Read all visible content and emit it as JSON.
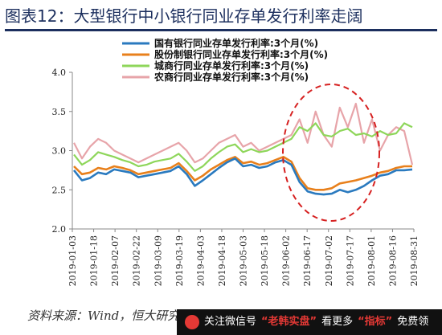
{
  "title": "图表12：大型银行中小银行同业存单发行利率走阔",
  "source": "资料来源：Wind，恒大研究院",
  "watermark": {
    "text1": "关注微信号",
    "text2": "“老韩实盘”",
    "text3": "看更多",
    "text4": "“指标”",
    "text5": "免费领"
  },
  "colors": {
    "title": "#1c2f5e",
    "series": [
      "#2a7abf",
      "#e8801c",
      "#8ed65a",
      "#e7a4a9"
    ],
    "ellipse": "#d62020"
  },
  "chart_data": {
    "type": "line",
    "title": "",
    "xlabel": "",
    "ylabel": "",
    "ylim": [
      2.0,
      4.0
    ],
    "yticks": [
      "2.0",
      "2.5",
      "3.0",
      "3.5",
      "4.0"
    ],
    "xticks": [
      "2019-01-03",
      "2019-01-18",
      "2019-02-07",
      "2019-02-22",
      "2019-03-09",
      "2019-03-19",
      "2019-04-03",
      "2019-04-18",
      "2019-05-03",
      "2019-05-18",
      "2019-06-02",
      "2019-06-17",
      "2019-07-02",
      "2019-07-17",
      "2019-08-01",
      "2019-08-16",
      "2019-08-31"
    ],
    "legend_position": "top",
    "series": [
      {
        "name": "国有银行同业存单发行利率:3个月(%)",
        "values": [
          2.75,
          2.62,
          2.65,
          2.72,
          2.7,
          2.76,
          2.74,
          2.72,
          2.66,
          2.68,
          2.7,
          2.72,
          2.74,
          2.8,
          2.7,
          2.55,
          2.62,
          2.7,
          2.78,
          2.85,
          2.9,
          2.8,
          2.82,
          2.78,
          2.8,
          2.85,
          2.88,
          2.82,
          2.6,
          2.48,
          2.45,
          2.44,
          2.45,
          2.5,
          2.47,
          2.5,
          2.55,
          2.62,
          2.68,
          2.7,
          2.75,
          2.75,
          2.76
        ]
      },
      {
        "name": "股份制银行同业存单发行利率:3个月(%)",
        "values": [
          2.8,
          2.7,
          2.72,
          2.78,
          2.76,
          2.8,
          2.78,
          2.75,
          2.7,
          2.72,
          2.74,
          2.76,
          2.78,
          2.84,
          2.74,
          2.62,
          2.68,
          2.76,
          2.82,
          2.88,
          2.92,
          2.84,
          2.86,
          2.82,
          2.84,
          2.88,
          2.92,
          2.86,
          2.65,
          2.52,
          2.5,
          2.5,
          2.52,
          2.58,
          2.6,
          2.62,
          2.65,
          2.68,
          2.72,
          2.74,
          2.78,
          2.8,
          2.8
        ]
      },
      {
        "name": "城商行同业存单发行利率:3个月(%)",
        "values": [
          2.95,
          2.82,
          2.88,
          2.98,
          2.95,
          2.92,
          2.88,
          2.85,
          2.8,
          2.82,
          2.86,
          2.88,
          2.9,
          2.96,
          2.86,
          2.74,
          2.8,
          2.9,
          2.98,
          3.05,
          3.08,
          2.98,
          3.02,
          2.98,
          3.0,
          3.05,
          3.1,
          3.15,
          3.3,
          3.25,
          3.35,
          3.2,
          3.18,
          3.25,
          3.28,
          3.2,
          3.22,
          3.18,
          3.25,
          3.2,
          3.22,
          3.35,
          3.3
        ]
      },
      {
        "name": "农商行同业存单发行利率:3个月(%)",
        "values": [
          3.1,
          2.9,
          3.05,
          3.15,
          3.1,
          3.0,
          2.95,
          2.9,
          2.85,
          2.9,
          2.95,
          3.0,
          3.05,
          3.1,
          3.0,
          2.85,
          2.9,
          3.0,
          3.1,
          3.15,
          3.2,
          3.05,
          3.1,
          3.0,
          3.05,
          3.1,
          3.15,
          3.2,
          3.4,
          3.1,
          3.5,
          3.2,
          3.05,
          3.55,
          3.3,
          3.6,
          3.1,
          3.4,
          3.0,
          3.2,
          3.3,
          3.25,
          2.82
        ]
      }
    ]
  }
}
